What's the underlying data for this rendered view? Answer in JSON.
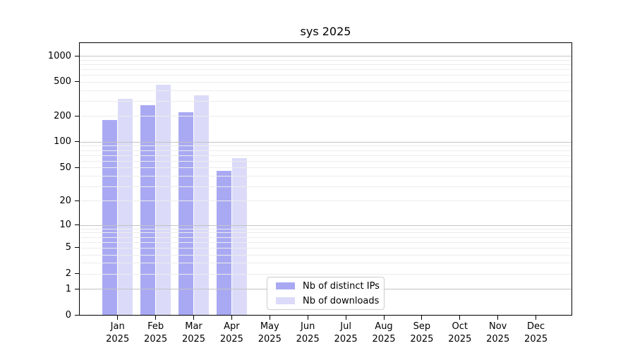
{
  "title": "sys 2025",
  "chart_data": {
    "type": "bar",
    "title": "sys 2025",
    "categories": [
      "Jan 2025",
      "Feb 2025",
      "Mar 2025",
      "Apr 2025",
      "May 2025",
      "Jun 2025",
      "Jul 2025",
      "Aug 2025",
      "Sep 2025",
      "Oct 2025",
      "Nov 2025",
      "Dec 2025"
    ],
    "series": [
      {
        "name": "Nb of distinct IPs",
        "color": "#a9a9f3",
        "fill": "rgba(150,150,240,0.82)",
        "values": [
          180,
          265,
          222,
          46,
          0,
          0,
          0,
          0,
          0,
          0,
          0,
          0
        ]
      },
      {
        "name": "Nb of downloads",
        "color": "#dbdbf9",
        "fill": "rgba(211,211,248,0.82)",
        "values": [
          320,
          465,
          347,
          65,
          0,
          0,
          0,
          0,
          0,
          0,
          0,
          0
        ]
      }
    ],
    "xlabel": "",
    "ylabel": "",
    "yscale": "log(value+1)",
    "y_ticks": [
      0,
      1,
      2,
      5,
      10,
      20,
      50,
      100,
      200,
      500,
      1000
    ],
    "major_grid_ticks": [
      1,
      10,
      100,
      1000
    ],
    "ylim": [
      0,
      1400
    ],
    "grid": "major+minor horizontal",
    "legend_position": "lower center inside"
  },
  "colors": {
    "major_grid": "#c3c3c3",
    "minor_grid": "#ececec",
    "axis": "#000000",
    "background": "#ffffff"
  }
}
